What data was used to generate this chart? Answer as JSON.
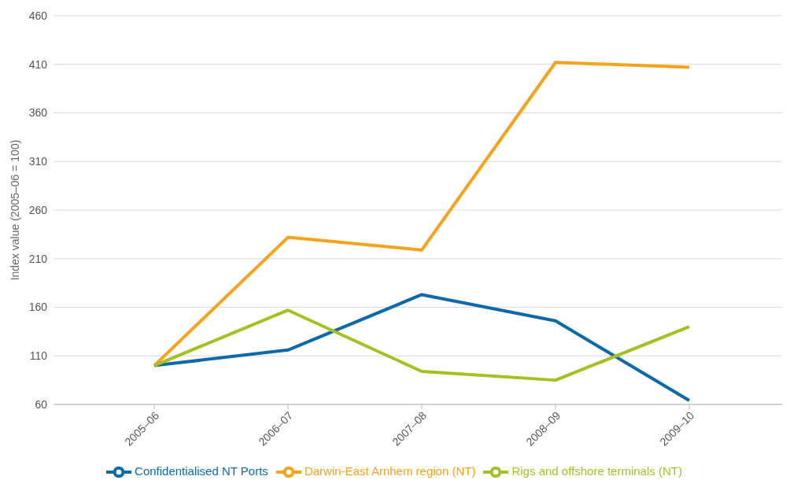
{
  "chart_data": {
    "type": "line",
    "ylabel": "Index value (2005–06 = 100)",
    "categories": [
      "2005–06",
      "2006–07",
      "2007–08",
      "2008–09",
      "2009–10"
    ],
    "series": [
      {
        "name": "Darwin-East Arnhem region (NT)",
        "color": "#f7a21b",
        "values": [
          100,
          232,
          219,
          412,
          407
        ]
      },
      {
        "name": "Confidentialised  NT Ports",
        "color": "#0d6aa8",
        "values": [
          100,
          116,
          173,
          146,
          64
        ]
      },
      {
        "name": "Rigs and offshore terminals (NT)",
        "color": "#a8bf22",
        "values": [
          100,
          157,
          94,
          85,
          140
        ]
      }
    ],
    "ylim": [
      60,
      460
    ],
    "yticks": [
      60,
      110,
      160,
      210,
      260,
      310,
      360,
      410,
      460
    ],
    "grid": "y",
    "legend": "bottom",
    "marker": "none",
    "line_style": "solid"
  }
}
